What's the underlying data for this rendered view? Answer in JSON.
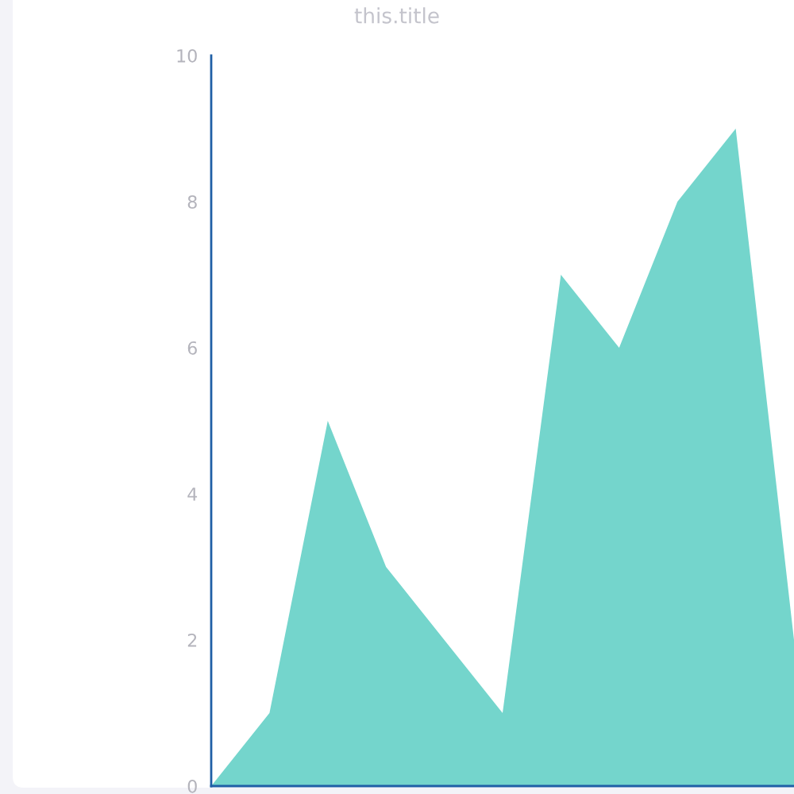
{
  "chart_data": {
    "type": "area",
    "title": "this.title",
    "categories": [
      null,
      null,
      null,
      null,
      null,
      null,
      null,
      null,
      null,
      null,
      null
    ],
    "series": [
      {
        "color": "#74d5cc",
        "values": [
          0,
          1,
          5,
          3,
          2,
          1,
          7,
          6,
          8,
          9,
          2
        ]
      }
    ],
    "ylim": [
      0,
      10
    ],
    "yticks": [
      0,
      2,
      4,
      6,
      8,
      10
    ],
    "tick_labels": "y"
  }
}
